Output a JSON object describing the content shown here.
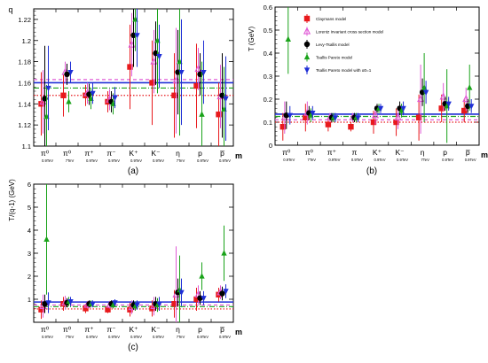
{
  "figure": {
    "captions": [
      "(a)",
      "(b)",
      "(c)"
    ],
    "xaxis_letter": "m",
    "colors": {
      "claymans": "#e8191c",
      "lorentz": "#e05bd6",
      "levy": "#000000",
      "tsallis_pareto": "#1aa31a",
      "tp_alpha": "#1f2fd6"
    }
  },
  "chart_data": [
    {
      "id": "a",
      "type": "scatter",
      "title": "",
      "xlabel": "m",
      "ylabel": "q",
      "ylim": [
        1.1,
        1.23
      ],
      "yticks": [
        1.1,
        1.12,
        1.14,
        1.16,
        1.18,
        1.2,
        1.22
      ],
      "ytick_labels": [
        "1.1",
        "1.12",
        "1.14",
        "1.16",
        "1.18",
        "1.2",
        "1.22"
      ],
      "categories": [
        {
          "main": "π⁰",
          "sub": "0.9TeV"
        },
        {
          "main": "π⁰",
          "sub": "7TeV"
        },
        {
          "main": "π⁺",
          "sub": "0.9TeV"
        },
        {
          "main": "π⁻",
          "sub": "0.9TeV"
        },
        {
          "main": "K⁺",
          "sub": "0.9TeV"
        },
        {
          "main": "K⁻",
          "sub": "0.9TeV"
        },
        {
          "main": "η",
          "sub": "7TeV"
        },
        {
          "main": "p",
          "sub": "0.9TeV"
        },
        {
          "main": "p̅",
          "sub": "0.9TeV"
        }
      ],
      "hlines": [
        {
          "series": "tp_alpha",
          "value": 1.16,
          "dash": "solid"
        },
        {
          "series": "lorentz",
          "value": 1.163,
          "dash": "dashed"
        },
        {
          "series": "tsallis_pareto",
          "value": 1.155,
          "dash": "dashdot"
        },
        {
          "series": "claymans",
          "value": 1.148,
          "dash": "dotted"
        }
      ],
      "series": [
        {
          "key": "claymans",
          "marker": "square",
          "values": [
            1.14,
            1.148,
            1.148,
            1.142,
            1.175,
            1.16,
            1.148,
            1.157,
            1.13
          ],
          "err": [
            0.03,
            0.02,
            0.01,
            0.01,
            0.04,
            0.04,
            0.04,
            0.04,
            0.03
          ]
        },
        {
          "key": "lorentz",
          "marker": "tri-open",
          "values": [
            1.142,
            1.17,
            1.15,
            1.144,
            1.196,
            1.18,
            1.162,
            1.173,
            1.147
          ],
          "err": [
            0.03,
            0.01,
            0.01,
            0.01,
            0.03,
            0.03,
            0.05,
            0.02,
            0.03
          ]
        },
        {
          "key": "levy",
          "marker": "circle",
          "values": [
            1.145,
            1.168,
            1.149,
            1.142,
            1.205,
            1.188,
            1.17,
            1.168,
            1.148
          ],
          "err": [
            0.05,
            0.01,
            0.01,
            0.01,
            0.03,
            0.03,
            0.04,
            0.02,
            0.04
          ]
        },
        {
          "key": "tsallis_pareto",
          "marker": "tri",
          "values": [
            1.128,
            1.142,
            1.145,
            1.14,
            1.22,
            1.2,
            1.18,
            1.13,
            1.135
          ],
          "err": [
            0.03,
            0.01,
            0.01,
            0.01,
            0.03,
            0.05,
            0.07,
            0.05,
            0.04
          ]
        },
        {
          "key": "tp_alpha",
          "marker": "tri-down",
          "values": [
            1.155,
            1.17,
            1.15,
            1.146,
            1.205,
            1.185,
            1.17,
            1.17,
            1.145
          ],
          "err": [
            0.04,
            0.01,
            0.01,
            0.01,
            0.03,
            0.03,
            0.05,
            0.03,
            0.04
          ]
        }
      ]
    },
    {
      "id": "b",
      "type": "scatter",
      "title": "",
      "xlabel": "m",
      "ylabel": "T (GeV)",
      "ylim": [
        0,
        0.6
      ],
      "yticks": [
        0,
        0.1,
        0.2,
        0.3,
        0.4,
        0.5,
        0.6
      ],
      "ytick_labels": [
        "0",
        "0.1",
        "0.2",
        "0.3",
        "0.4",
        "0.5",
        "0.6"
      ],
      "categories": [
        {
          "main": "π⁰",
          "sub": "0.9TeV"
        },
        {
          "main": "π⁰",
          "sub": "7TeV"
        },
        {
          "main": "π⁺",
          "sub": "0.9TeV"
        },
        {
          "main": "π",
          "sub": "0.9TeV"
        },
        {
          "main": "K⁺",
          "sub": "0.9TeV"
        },
        {
          "main": "K⁻",
          "sub": "0.9TeV"
        },
        {
          "main": "η",
          "sub": "7TeV"
        },
        {
          "main": "p",
          "sub": "0.9TeV"
        },
        {
          "main": "p̅",
          "sub": "0.9TeV"
        }
      ],
      "legend": {
        "placement": "top-right",
        "entries": [
          {
            "series": "claymans",
            "label": "Claymans model"
          },
          {
            "series": "lorentz",
            "label": "Lorentz Invariant cross section model"
          },
          {
            "series": "levy",
            "label": "Levy-Tsallis model"
          },
          {
            "series": "tsallis_pareto",
            "label": "Tsallis Pareto model"
          },
          {
            "series": "tp_alpha",
            "label": "Tsallis Pareto model  with α0=1"
          }
        ]
      },
      "hlines": [
        {
          "series": "tp_alpha",
          "value": 0.135,
          "dash": "solid"
        },
        {
          "series": "tsallis_pareto",
          "value": 0.125,
          "dash": "dashdot"
        },
        {
          "series": "lorentz",
          "value": 0.11,
          "dash": "dashed"
        },
        {
          "series": "claymans",
          "value": 0.1,
          "dash": "dotted"
        }
      ],
      "series": [
        {
          "key": "claymans",
          "marker": "square",
          "values": [
            0.08,
            0.12,
            0.09,
            0.08,
            0.1,
            0.1,
            0.12,
            0.16,
            0.15
          ],
          "err": [
            0.06,
            0.06,
            0.03,
            0.02,
            0.05,
            0.06,
            0.1,
            0.06,
            0.05
          ]
        },
        {
          "key": "lorentz",
          "marker": "tri-open",
          "values": [
            0.12,
            0.14,
            0.12,
            0.12,
            0.13,
            0.12,
            0.2,
            0.21,
            0.2
          ],
          "err": [
            0.07,
            0.05,
            0.02,
            0.02,
            0.04,
            0.05,
            0.15,
            0.06,
            0.05
          ]
        },
        {
          "key": "levy",
          "marker": "circle",
          "values": [
            0.13,
            0.14,
            0.12,
            0.12,
            0.16,
            0.16,
            0.23,
            0.18,
            0.17
          ],
          "err": [
            0.06,
            0.03,
            0.02,
            0.02,
            0.02,
            0.03,
            0.06,
            0.03,
            0.03
          ]
        },
        {
          "key": "tsallis_pareto",
          "marker": "tri",
          "values": [
            0.46,
            0.13,
            0.12,
            0.12,
            0.16,
            0.15,
            0.25,
            0.17,
            0.25
          ],
          "err": [
            0.15,
            0.03,
            0.02,
            0.02,
            0.02,
            0.03,
            0.15,
            0.16,
            0.1
          ]
        },
        {
          "key": "tp_alpha",
          "marker": "tri-down",
          "values": [
            0.13,
            0.14,
            0.12,
            0.12,
            0.16,
            0.16,
            0.23,
            0.18,
            0.17
          ],
          "err": [
            0.04,
            0.03,
            0.02,
            0.02,
            0.02,
            0.03,
            0.05,
            0.03,
            0.03
          ]
        }
      ]
    },
    {
      "id": "c",
      "type": "scatter",
      "title": "",
      "xlabel": "m",
      "ylabel": "T/(q-1) (GeV)",
      "ylim": [
        0,
        6
      ],
      "yticks": [
        1,
        2,
        3,
        4,
        5,
        6
      ],
      "ytick_labels": [
        "1",
        "2",
        "3",
        "4",
        "5",
        "6"
      ],
      "categories": [
        {
          "main": "π⁰",
          "sub": "0.9TeV"
        },
        {
          "main": "π⁰",
          "sub": "7TeV"
        },
        {
          "main": "π⁺",
          "sub": "0.9TeV"
        },
        {
          "main": "π⁻",
          "sub": "0.9TeV"
        },
        {
          "main": "K⁺",
          "sub": "0.9TeV"
        },
        {
          "main": "K⁻",
          "sub": "0.9TeV"
        },
        {
          "main": "η",
          "sub": "7TeV"
        },
        {
          "main": "p",
          "sub": "0.9TeV"
        },
        {
          "main": "p̅",
          "sub": "0.9TeV"
        }
      ],
      "hlines": [
        {
          "series": "tp_alpha",
          "value": 0.88,
          "dash": "solid"
        },
        {
          "series": "lorentz",
          "value": 0.75,
          "dash": "dashed"
        },
        {
          "series": "tsallis_pareto",
          "value": 0.68,
          "dash": "dashdot"
        },
        {
          "series": "claymans",
          "value": 0.58,
          "dash": "dotted"
        }
      ],
      "series": [
        {
          "key": "claymans",
          "marker": "square",
          "values": [
            0.55,
            0.8,
            0.6,
            0.55,
            0.55,
            0.6,
            0.8,
            1.0,
            1.2
          ],
          "err": [
            0.4,
            0.3,
            0.2,
            0.15,
            0.3,
            0.35,
            0.6,
            0.5,
            0.3
          ]
        },
        {
          "key": "lorentz",
          "marker": "tri-open",
          "values": [
            0.7,
            0.85,
            0.75,
            0.75,
            0.65,
            0.7,
            1.2,
            1.2,
            1.3
          ],
          "err": [
            0.5,
            0.3,
            0.15,
            0.15,
            0.3,
            0.4,
            2.1,
            0.4,
            0.3
          ]
        },
        {
          "key": "levy",
          "marker": "circle",
          "values": [
            0.8,
            0.85,
            0.8,
            0.8,
            0.75,
            0.8,
            1.3,
            1.05,
            1.25
          ],
          "err": [
            0.4,
            0.2,
            0.15,
            0.15,
            0.2,
            0.3,
            0.6,
            0.3,
            0.3
          ]
        },
        {
          "key": "tsallis_pareto",
          "marker": "tri",
          "values": [
            3.6,
            0.9,
            0.8,
            0.75,
            0.7,
            0.75,
            1.4,
            2.0,
            3.0
          ],
          "err": [
            2.4,
            0.2,
            0.15,
            0.15,
            0.2,
            0.3,
            1.5,
            0.6,
            1.2
          ]
        },
        {
          "key": "tp_alpha",
          "marker": "tri-down",
          "values": [
            0.85,
            0.9,
            0.8,
            0.85,
            0.75,
            0.8,
            1.3,
            1.05,
            1.35
          ],
          "err": [
            0.45,
            0.2,
            0.15,
            0.15,
            0.2,
            0.3,
            0.6,
            0.3,
            0.3
          ]
        }
      ]
    }
  ]
}
